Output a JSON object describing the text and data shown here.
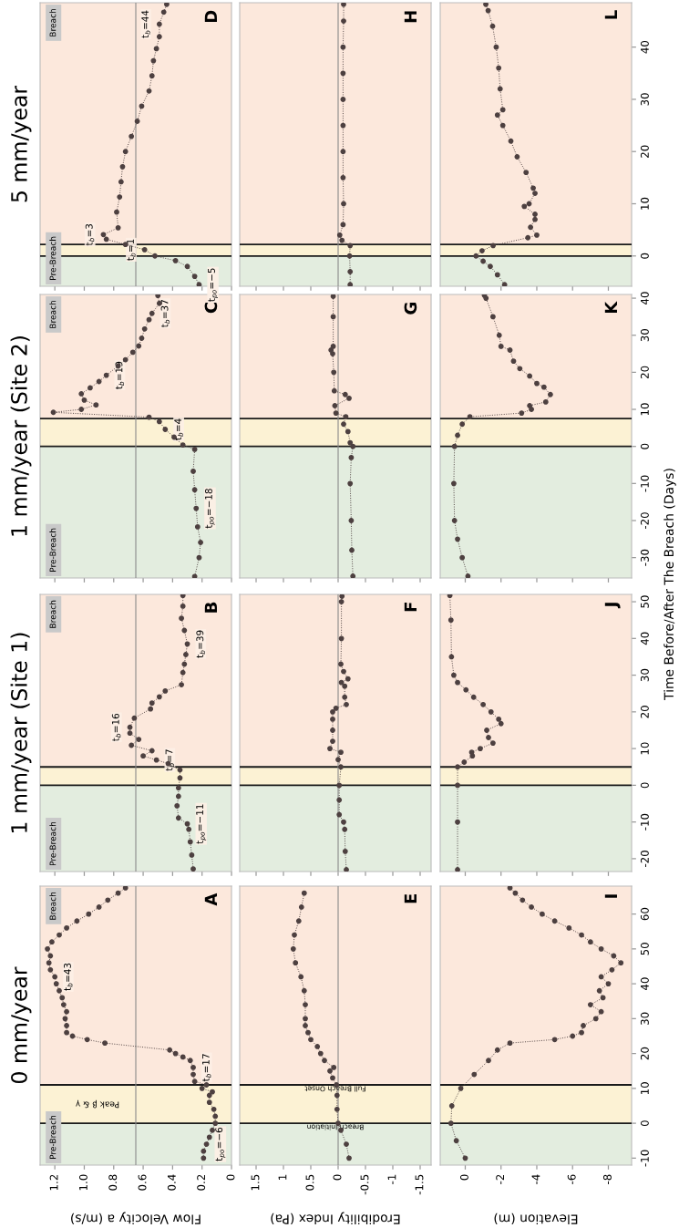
{
  "chart_data": [
    {
      "type": "line",
      "title": "0 mm/year",
      "xlabel": "Flow Velocity a (m/s)",
      "color": "#4d4040",
      "marker": "circle",
      "line_style": "dotted",
      "tick_labels": "x",
      "values": [
        -10,
        -8,
        -6,
        -4,
        -2,
        0,
        2,
        4,
        6,
        8,
        9,
        10,
        11,
        12,
        14,
        16,
        18,
        19,
        20,
        21,
        23,
        24,
        25,
        26,
        28,
        30,
        32,
        34,
        36,
        38,
        40,
        42,
        44,
        46,
        48,
        50,
        52,
        54,
        56,
        58,
        60,
        62,
        64,
        66,
        67.5
      ],
      "x": [
        0.19,
        0.19,
        0.17,
        0.15,
        0.13,
        0.11,
        0.11,
        0.12,
        0.15,
        0.15,
        0.13,
        0.2,
        0.17,
        0.25,
        0.26,
        0.26,
        0.28,
        0.33,
        0.38,
        0.42,
        0.86,
        0.98,
        1.08,
        1.12,
        1.12,
        1.13,
        1.12,
        1.14,
        1.15,
        1.17,
        1.19,
        1.2,
        1.23,
        1.24,
        1.23,
        1.25,
        1.22,
        1.17,
        1.12,
        1.05,
        0.97,
        0.9,
        0.84,
        0.77,
        0.72
      ],
      "ylim": [
        -12,
        68
      ],
      "xlim": [
        1.3,
        0
      ],
      "yticks": [
        -10,
        0,
        10,
        20,
        30,
        40,
        50,
        60
      ],
      "xticks": [
        0,
        0.2,
        0.4,
        0.6,
        0.8,
        {
          "value": 1,
          "label": "1.0"
        },
        1.2
      ],
      "bands": [
        {
          "axis": "y",
          "from": -12,
          "to": 0,
          "label": "Pre-Breach",
          "color": "#e3eddf"
        },
        {
          "axis": "y",
          "from": 0,
          "to": 11,
          "label": "Peak β & γ",
          "color": "#fcf2d4"
        },
        {
          "axis": "y",
          "from": 11,
          "to": 68,
          "label": "Breach",
          "color": "#fce8dc"
        }
      ],
      "ref_lines": [
        {
          "axis": "y",
          "value": 0,
          "color": "#1a1a1a"
        },
        {
          "axis": "y",
          "value": 11,
          "color": "#1a1a1a"
        },
        {
          "axis": "x",
          "value": 0.65,
          "color": "#8a8a8a"
        }
      ],
      "annotations": [
        "A",
        {
          "text": "t$_{po}$=−6",
          "y": -6,
          "x": 0.17
        },
        {
          "text": "t$_{b}$=17",
          "y": 16,
          "x": 0.26
        },
        {
          "text": "t$_{b}$=43",
          "y": 42,
          "x": 1.2
        }
      ]
    },
    {
      "type": "line",
      "title": "1 mm/year (Site 1)",
      "color": "#4d4040",
      "marker": "circle",
      "line_style": "dotted",
      "tick_labels": false,
      "values": [
        -22.8,
        -19,
        -15.4,
        -12,
        -10.5,
        -8.9,
        -5.6,
        -3,
        -0.7,
        2,
        4.2,
        5.9,
        6.9,
        8,
        9.4,
        10.9,
        12.5,
        14.2,
        15.8,
        18.3,
        20.8,
        22.4,
        24.1,
        25.7,
        27.4,
        30.7,
        33,
        35.6,
        38.5,
        42.2,
        45.5,
        48.8,
        51.7
      ],
      "x": [
        0.26,
        0.27,
        0.28,
        0.29,
        0.3,
        0.36,
        0.37,
        0.36,
        0.36,
        0.35,
        0.35,
        0.43,
        0.51,
        0.6,
        0.54,
        0.68,
        0.63,
        0.69,
        0.69,
        0.66,
        0.55,
        0.54,
        0.49,
        0.45,
        0.34,
        0.33,
        0.32,
        0.31,
        0.3,
        0.32,
        0.34,
        0.33,
        0.33
      ],
      "ylim": [
        -23.5,
        52
      ],
      "xlim": [
        1.3,
        0
      ],
      "yticks": [
        -20,
        -10,
        0,
        10,
        20,
        30,
        40,
        50
      ],
      "xticks": [
        0,
        0.2,
        0.4,
        0.6,
        0.8,
        1,
        1.2
      ],
      "bands": [
        {
          "axis": "y",
          "from": -23.5,
          "to": 0,
          "label": "Pre-Breach",
          "color": "#e3eddf"
        },
        {
          "axis": "y",
          "from": 0,
          "to": 5,
          "label": null,
          "color": "#fcf2d4"
        },
        {
          "axis": "y",
          "from": 5,
          "to": 52,
          "label": "Breach",
          "color": "#fce8dc"
        }
      ],
      "ref_lines": [
        {
          "axis": "y",
          "value": 0,
          "color": "#1a1a1a"
        },
        {
          "axis": "y",
          "value": 5,
          "color": "#1a1a1a"
        },
        {
          "axis": "x",
          "value": 0.65,
          "color": "#8a8a8a"
        }
      ],
      "annotations": [
        "B",
        {
          "text": "t$_{po}$=−11",
          "y": -10.5,
          "x": 0.3
        },
        {
          "text": "t$_{b}$=7",
          "y": 6.9,
          "x": 0.51
        },
        {
          "text": "t$_{b}$=16",
          "y": 15.8,
          "x": 0.69
        },
        {
          "text": "t$_{b}$=39",
          "y": 38.5,
          "x": 0.3
        }
      ]
    },
    {
      "type": "line",
      "title": "1 mm/year (Site 2)",
      "color": "#4d4040",
      "marker": "circle",
      "line_style": "dotted",
      "tick_labels": false,
      "values": [
        -35.1,
        -30,
        -25.9,
        -21.7,
        -16.7,
        -11.7,
        -6.7,
        -0.8,
        0.4,
        2.5,
        4.6,
        6.7,
        7.9,
        9.2,
        10,
        11.2,
        12.5,
        14.2,
        15.8,
        17.5,
        19.2,
        21.7,
        23.4,
        25.4,
        27.1,
        29.2,
        31.7,
        34.2,
        35.9,
        38.6,
        40.7
      ],
      "x": [
        0.25,
        0.22,
        0.21,
        0.23,
        0.24,
        0.25,
        0.26,
        0.25,
        0.33,
        0.39,
        0.45,
        0.49,
        0.56,
        1.21,
        1.02,
        0.92,
        1.0,
        1.02,
        0.96,
        0.9,
        0.85,
        0.77,
        0.72,
        0.67,
        0.63,
        0.61,
        0.59,
        0.56,
        0.54,
        0.49,
        0.5
      ],
      "ylim": [
        -35.5,
        41
      ],
      "xlim": [
        1.3,
        0
      ],
      "yticks": [
        -30,
        -20,
        -10,
        0,
        10,
        20,
        30,
        40
      ],
      "xticks": [
        0,
        0.2,
        0.4,
        0.6,
        0.8,
        1,
        1.2
      ],
      "bands": [
        {
          "axis": "y",
          "from": -35.5,
          "to": 0,
          "label": "Pre-Breach",
          "color": "#e3eddf"
        },
        {
          "axis": "y",
          "from": 0,
          "to": 7.5,
          "label": null,
          "color": "#fcf2d4"
        },
        {
          "axis": "y",
          "from": 7.5,
          "to": 41,
          "label": "Breach",
          "color": "#fce8dc"
        }
      ],
      "ref_lines": [
        {
          "axis": "y",
          "value": 0,
          "color": "#1a1a1a"
        },
        {
          "axis": "y",
          "value": 7.5,
          "color": "#1a1a1a"
        },
        {
          "axis": "x",
          "value": 0.65,
          "color": "#8a8a8a"
        }
      ],
      "annotations": [
        "C",
        {
          "text": "t$_{po}$=−18",
          "y": -16.7,
          "x": 0.24
        },
        {
          "text": "t$_{b}$=4",
          "y": 4.6,
          "x": 0.45
        },
        {
          "text": "t$_{b}$=19",
          "y": 19.2,
          "x": 0.85
        },
        {
          "text": "t$_{b}$=37",
          "y": 35.9,
          "x": 0.54
        }
      ]
    },
    {
      "type": "line",
      "title": "5 mm/year",
      "color": "#4d4040",
      "marker": "circle",
      "line_style": "dotted",
      "tick_labels": false,
      "values": [
        -5.5,
        -3.9,
        -2,
        -0.9,
        0,
        1.2,
        2.2,
        3.2,
        4.1,
        5.4,
        8.4,
        11.3,
        14.2,
        17.1,
        20,
        22.9,
        25.8,
        28.7,
        31.6,
        34.5,
        37.4,
        39.7,
        42,
        44.4,
        46.7,
        48.2
      ],
      "x": [
        0.22,
        0.25,
        0.3,
        0.38,
        0.52,
        0.59,
        0.72,
        0.85,
        0.87,
        0.77,
        0.78,
        0.76,
        0.75,
        0.74,
        0.72,
        0.68,
        0.64,
        0.61,
        0.56,
        0.54,
        0.53,
        0.51,
        0.49,
        0.49,
        0.46,
        0.44
      ],
      "ylim": [
        -5.8,
        48.5
      ],
      "xlim": [
        1.3,
        0
      ],
      "yticks": [
        0,
        10,
        20,
        30,
        40
      ],
      "xticks": [
        0,
        0.2,
        0.4,
        0.6,
        0.8,
        1,
        1.2
      ],
      "bands": [
        {
          "axis": "y",
          "from": -5.8,
          "to": 0,
          "label": "Pre-Breach",
          "color": "#e3eddf"
        },
        {
          "axis": "y",
          "from": 0,
          "to": 2.2,
          "label": null,
          "color": "#fcf2d4"
        },
        {
          "axis": "y",
          "from": 2.2,
          "to": 48.5,
          "label": "Breach",
          "color": "#fce8dc"
        }
      ],
      "ref_lines": [
        {
          "axis": "y",
          "value": 0,
          "color": "#1a1a1a"
        },
        {
          "axis": "y",
          "value": 2.2,
          "color": "#1a1a1a"
        },
        {
          "axis": "x",
          "value": 0.65,
          "color": "#8a8a8a"
        }
      ],
      "annotations": [
        "D",
        {
          "text": "t$_{po}$=−5",
          "y": -5.5,
          "x": 0.22
        },
        {
          "text": "t$_{b}$=1",
          "y": 1.2,
          "x": 0.59
        },
        {
          "text": "t$_{b}$=3",
          "y": 4.1,
          "x": 0.87
        },
        {
          "text": "t$_{b}$=44",
          "y": 44.4,
          "x": 0.49
        }
      ]
    },
    {
      "type": "line",
      "xlabel": "Erodibility Index (Pa)",
      "color": "#4d4040",
      "marker": "circle",
      "line_style": "dotted",
      "tick_labels": "x",
      "values": [
        -10,
        -6,
        -2,
        0,
        4,
        8,
        11,
        13,
        15,
        16,
        18,
        20,
        22,
        24,
        26,
        28,
        30,
        34,
        38,
        42,
        46,
        50,
        54,
        58,
        62,
        66
      ],
      "x": [
        -0.2,
        -0.15,
        -0.05,
        0,
        0.02,
        0.02,
        0.03,
        0.1,
        0.15,
        0.08,
        0.25,
        0.32,
        0.38,
        0.5,
        0.55,
        0.6,
        0.6,
        0.6,
        0.62,
        0.68,
        0.78,
        0.82,
        0.8,
        0.72,
        0.67,
        0.62
      ],
      "ylim": [
        -12,
        68
      ],
      "xlim": [
        1.8,
        -1.7
      ],
      "yticks": [
        -10,
        0,
        10,
        20,
        30,
        40,
        50,
        60
      ],
      "xticks": [
        -1.5,
        -1,
        -0.5,
        0,
        0.5,
        1,
        1.5
      ],
      "bands": [
        {
          "axis": "y",
          "from": -12,
          "to": 0,
          "label": null,
          "color": "#e3eddf"
        },
        {
          "axis": "y",
          "from": 0,
          "to": 11,
          "label": null,
          "color": "#fcf2d4"
        },
        {
          "axis": "y",
          "from": 11,
          "to": 68,
          "label": null,
          "color": "#fce8dc"
        }
      ],
      "ref_lines": [
        {
          "axis": "y",
          "value": 0,
          "label": "Breach Initiation",
          "color": "#1a1a1a"
        },
        {
          "axis": "y",
          "value": 11,
          "label": "Full Breach Onset",
          "color": "#1a1a1a"
        },
        {
          "axis": "x",
          "value": 0,
          "color": "#8a8a8a"
        }
      ],
      "annotations": [
        "E"
      ]
    },
    {
      "type": "line",
      "color": "#4d4040",
      "marker": "circle",
      "line_style": "dotted",
      "tick_labels": false,
      "values": [
        -23,
        -18,
        -12,
        -10,
        -8,
        -4,
        0,
        5,
        7,
        9,
        10,
        12,
        15,
        18,
        20,
        21,
        22,
        24,
        27,
        28,
        29,
        31,
        33,
        40,
        50,
        51.5
      ],
      "x": [
        -0.15,
        -0.13,
        -0.12,
        -0.1,
        -0.02,
        -0.02,
        -0.02,
        -0.05,
        0,
        -0.05,
        0.15,
        0.1,
        0.1,
        0.1,
        0.1,
        0.04,
        -0.15,
        -0.12,
        -0.12,
        -0.06,
        -0.18,
        -0.1,
        -0.05,
        -0.06,
        -0.06,
        -0.07
      ],
      "ylim": [
        -23.5,
        52
      ],
      "xlim": [
        1.8,
        -1.7
      ],
      "yticks": [
        -20,
        -10,
        0,
        10,
        20,
        30,
        40,
        50
      ],
      "xticks": [
        -1.5,
        -1,
        -0.5,
        0,
        0.5,
        1,
        1.5
      ],
      "bands": [
        {
          "axis": "y",
          "from": -23.5,
          "to": 0,
          "label": null,
          "color": "#e3eddf"
        },
        {
          "axis": "y",
          "from": 0,
          "to": 5,
          "label": null,
          "color": "#fcf2d4"
        },
        {
          "axis": "y",
          "from": 5,
          "to": 52,
          "label": null,
          "color": "#fce8dc"
        }
      ],
      "ref_lines": [
        {
          "axis": "y",
          "value": 0,
          "color": "#1a1a1a"
        },
        {
          "axis": "y",
          "value": 5,
          "color": "#1a1a1a"
        },
        {
          "axis": "x",
          "value": 0,
          "color": "#8a8a8a"
        }
      ],
      "annotations": [
        "F"
      ]
    },
    {
      "type": "line",
      "color": "#4d4040",
      "marker": "circle",
      "line_style": "dotted",
      "tick_labels": false,
      "values": [
        -35,
        -28,
        -20,
        -10,
        -3,
        0,
        1,
        4,
        6,
        8,
        9,
        11,
        13,
        14,
        15,
        20,
        25,
        26,
        27,
        35,
        40.5
      ],
      "x": [
        -0.27,
        -0.25,
        -0.24,
        -0.22,
        -0.24,
        -0.27,
        -0.22,
        -0.18,
        -0.1,
        -0.14,
        0.04,
        0.06,
        -0.2,
        -0.13,
        0.07,
        0.08,
        0.1,
        0.13,
        0.09,
        0.09,
        0.09
      ],
      "ylim": [
        -35.5,
        41
      ],
      "xlim": [
        1.8,
        -1.7
      ],
      "yticks": [
        -30,
        -20,
        -10,
        0,
        10,
        20,
        30,
        40
      ],
      "xticks": [
        -1.5,
        -1,
        -0.5,
        0,
        0.5,
        1,
        1.5
      ],
      "bands": [
        {
          "axis": "y",
          "from": -35.5,
          "to": 0,
          "label": null,
          "color": "#e3eddf"
        },
        {
          "axis": "y",
          "from": 0,
          "to": 7.5,
          "label": null,
          "color": "#fcf2d4"
        },
        {
          "axis": "y",
          "from": 7.5,
          "to": 41,
          "label": null,
          "color": "#fce8dc"
        }
      ],
      "ref_lines": [
        {
          "axis": "y",
          "value": 0,
          "color": "#1a1a1a"
        },
        {
          "axis": "y",
          "value": 7.5,
          "color": "#1a1a1a"
        },
        {
          "axis": "x",
          "value": 0,
          "color": "#8a8a8a"
        }
      ],
      "annotations": [
        "G"
      ]
    },
    {
      "type": "line",
      "color": "#4d4040",
      "marker": "circle",
      "line_style": "dotted",
      "tick_labels": false,
      "values": [
        -5.5,
        -3,
        0,
        2,
        3,
        4,
        6,
        10,
        15,
        20,
        25,
        30,
        35,
        40,
        45,
        48.2
      ],
      "x": [
        -0.22,
        -0.22,
        -0.21,
        -0.22,
        -0.07,
        -0.03,
        -0.09,
        -0.1,
        -0.09,
        -0.09,
        -0.09,
        -0.09,
        -0.09,
        -0.09,
        -0.1,
        -0.1
      ],
      "ylim": [
        -5.8,
        48.5
      ],
      "xlim": [
        1.8,
        -1.7
      ],
      "yticks": [
        0,
        10,
        20,
        30,
        40
      ],
      "xticks": [
        -1.5,
        -1,
        -0.5,
        0,
        0.5,
        1,
        1.5
      ],
      "bands": [
        {
          "axis": "y",
          "from": -5.8,
          "to": 0,
          "label": null,
          "color": "#e3eddf"
        },
        {
          "axis": "y",
          "from": 0,
          "to": 2.2,
          "label": null,
          "color": "#fcf2d4"
        },
        {
          "axis": "y",
          "from": 2.2,
          "to": 48.5,
          "label": null,
          "color": "#fce8dc"
        }
      ],
      "ref_lines": [
        {
          "axis": "y",
          "value": 0,
          "color": "#1a1a1a"
        },
        {
          "axis": "y",
          "value": 2.2,
          "color": "#1a1a1a"
        },
        {
          "axis": "x",
          "value": 0,
          "color": "#8a8a8a"
        }
      ],
      "annotations": [
        "H"
      ]
    },
    {
      "type": "line",
      "xlabel": "Elevation (m)",
      "color": "#4d4040",
      "marker": "circle",
      "line_style": "dotted",
      "values": [
        -10,
        -5,
        0,
        5,
        10,
        14,
        18,
        21,
        23,
        24,
        25,
        26,
        28,
        30,
        32,
        34,
        36,
        38,
        40,
        42,
        44,
        46,
        48,
        50,
        52,
        54,
        56,
        58,
        60,
        62,
        64,
        66,
        67.5
      ],
      "x": [
        0,
        0.5,
        0.8,
        0.75,
        0.25,
        -0.5,
        -1.3,
        -1.8,
        -2.5,
        -5.0,
        -6.0,
        -6.5,
        -6.6,
        -7.3,
        -7.6,
        -7.0,
        -7.7,
        -7.5,
        -8.0,
        -7.6,
        -8.2,
        -8.7,
        -8.3,
        -7.6,
        -7.0,
        -6.5,
        -5.8,
        -5.0,
        -4.3,
        -3.7,
        -3.2,
        -2.8,
        -2.5
      ],
      "ylim": [
        -12,
        68
      ],
      "xlim": [
        1.4,
        -9.3
      ],
      "yticks": [
        -10,
        0,
        10,
        20,
        30,
        40,
        50,
        60
      ],
      "xticks": [
        -8,
        -6,
        -4,
        -2,
        0
      ],
      "bands": [
        {
          "axis": "y",
          "from": -12,
          "to": 0,
          "label": null,
          "color": "#e3eddf"
        },
        {
          "axis": "y",
          "from": 0,
          "to": 11,
          "label": null,
          "color": "#fcf2d4"
        },
        {
          "axis": "y",
          "from": 11,
          "to": 68,
          "label": null,
          "color": "#fce8dc"
        }
      ],
      "ref_lines": [
        {
          "axis": "y",
          "value": 0,
          "color": "#1a1a1a"
        },
        {
          "axis": "y",
          "value": 11,
          "color": "#1a1a1a"
        }
      ],
      "annotations": [
        "I"
      ]
    },
    {
      "type": "line",
      "color": "#4d4040",
      "marker": "circle",
      "line_style": "dotted",
      "tick_labels": "y",
      "values": [
        -23,
        -10,
        0,
        5,
        6.3,
        8,
        9,
        10,
        11.5,
        13,
        15,
        16.8,
        18,
        20,
        22,
        24,
        26,
        28,
        30,
        35,
        45,
        51.7
      ],
      "x": [
        0.43,
        0.43,
        0.43,
        0.43,
        0.06,
        -0.4,
        -0.36,
        -0.84,
        -1.55,
        -1.3,
        -1.2,
        -2.0,
        -1.87,
        -1.44,
        -1.0,
        -0.47,
        -0.04,
        0.43,
        0.64,
        0.77,
        0.8,
        0.86
      ],
      "ylim": [
        -23.5,
        52
      ],
      "xlim": [
        1.4,
        -9.3
      ],
      "yticks": [
        -20,
        -10,
        0,
        10,
        20,
        30,
        40,
        50
      ],
      "xticks": [
        -8,
        -6,
        -4,
        -2,
        0
      ],
      "bands": [
        {
          "axis": "y",
          "from": -23.5,
          "to": 0,
          "label": null,
          "color": "#e3eddf"
        },
        {
          "axis": "y",
          "from": 0,
          "to": 5,
          "label": null,
          "color": "#fcf2d4"
        },
        {
          "axis": "y",
          "from": 5,
          "to": 52,
          "label": null,
          "color": "#fce8dc"
        }
      ],
      "ref_lines": [
        {
          "axis": "y",
          "value": 0,
          "color": "#1a1a1a"
        },
        {
          "axis": "y",
          "value": 5,
          "color": "#1a1a1a"
        }
      ],
      "annotations": [
        "J"
      ]
    },
    {
      "type": "line",
      "ylabel": "Time Before/After The Breach (Days)",
      "color": "#4d4040",
      "marker": "circle",
      "line_style": "dotted",
      "tick_labels": "y",
      "values": [
        -35,
        -30,
        -25,
        -20,
        -10,
        0,
        3,
        6,
        8,
        9,
        10,
        11,
        12,
        14,
        16,
        17,
        19,
        21,
        23,
        26,
        27,
        30,
        35,
        40,
        40.8
      ],
      "x": [
        -0.15,
        0.17,
        0.43,
        0.6,
        0.64,
        0.6,
        0.43,
        0.17,
        -0.26,
        -3.15,
        -3.7,
        -3.6,
        -4.5,
        -4.76,
        -4.4,
        -4.0,
        -3.6,
        -3.05,
        -2.7,
        -2.5,
        -2.0,
        -1.9,
        -1.55,
        -1.16,
        -1.07
      ],
      "ylim": [
        -35.5,
        41
      ],
      "xlim": [
        1.4,
        -9.3
      ],
      "yticks": [
        -30,
        -20,
        -10,
        0,
        10,
        20,
        30,
        40
      ],
      "xticks": [
        -8,
        -6,
        -4,
        -2,
        0
      ],
      "bands": [
        {
          "axis": "y",
          "from": -35.5,
          "to": 0,
          "label": null,
          "color": "#e3eddf"
        },
        {
          "axis": "y",
          "from": 0,
          "to": 7.5,
          "label": null,
          "color": "#fcf2d4"
        },
        {
          "axis": "y",
          "from": 7.5,
          "to": 41,
          "label": null,
          "color": "#fce8dc"
        }
      ],
      "ref_lines": [
        {
          "axis": "y",
          "value": 0,
          "color": "#1a1a1a"
        },
        {
          "axis": "y",
          "value": 7.5,
          "color": "#1a1a1a"
        }
      ],
      "annotations": [
        "K"
      ]
    },
    {
      "type": "line",
      "color": "#4d4040",
      "marker": "circle",
      "line_style": "dotted",
      "tick_labels": "y",
      "values": [
        -5.5,
        -3.6,
        -2,
        -1,
        0,
        1,
        2,
        3.5,
        4,
        5.5,
        7,
        8,
        9.5,
        10,
        12,
        13,
        16,
        19,
        22,
        25,
        27,
        28,
        32,
        36,
        40,
        44,
        47,
        48.2
      ],
      "x": [
        -2.2,
        -1.8,
        -1.4,
        -1.0,
        -0.6,
        -0.94,
        -1.56,
        -3.5,
        -4.0,
        -3.65,
        -3.9,
        -3.9,
        -3.3,
        -3.57,
        -3.9,
        -3.8,
        -3.4,
        -2.9,
        -2.55,
        -2.1,
        -1.8,
        -2.1,
        -1.95,
        -1.87,
        -1.73,
        -1.53,
        -1.28,
        -1.15
      ],
      "ylim": [
        -5.8,
        48.5
      ],
      "xlim": [
        1.4,
        -9.3
      ],
      "yticks": [
        0,
        10,
        20,
        30,
        40
      ],
      "xticks": [
        -8,
        -6,
        -4,
        -2,
        0
      ],
      "bands": [
        {
          "axis": "y",
          "from": -5.8,
          "to": 0,
          "label": null,
          "color": "#e3eddf"
        },
        {
          "axis": "y",
          "from": 0,
          "to": 2.2,
          "label": null,
          "color": "#fcf2d4"
        },
        {
          "axis": "y",
          "from": 2.2,
          "to": 48.5,
          "label": null,
          "color": "#fce8dc"
        }
      ],
      "ref_lines": [
        {
          "axis": "y",
          "value": 0,
          "color": "#1a1a1a"
        },
        {
          "axis": "y",
          "value": 2.2,
          "color": "#1a1a1a"
        }
      ],
      "annotations": [
        "L"
      ]
    }
  ]
}
